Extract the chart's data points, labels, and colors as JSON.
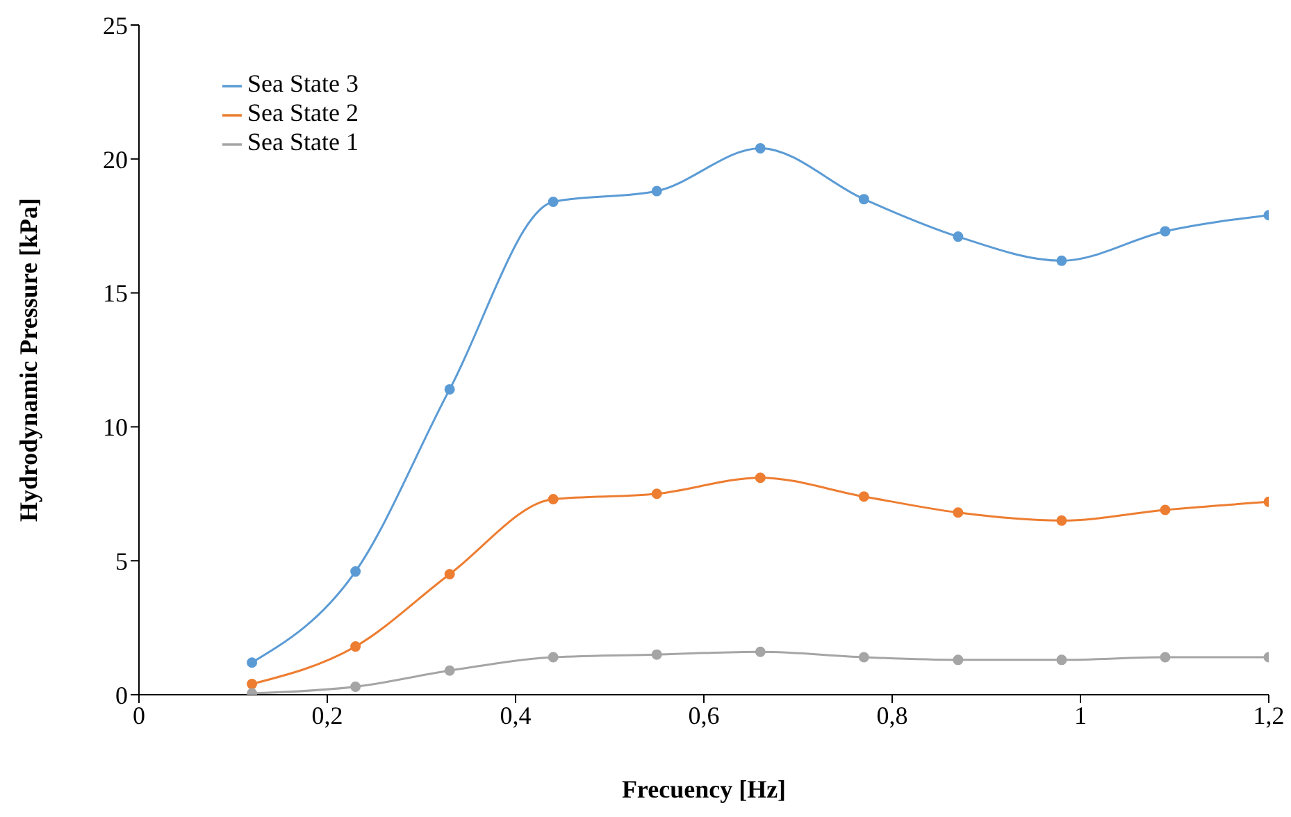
{
  "chart_data": {
    "type": "line",
    "xlabel": "Frecuency [Hz]",
    "ylabel": "Hydrodynamic Pressure [kPa]",
    "x": [
      0.12,
      0.23,
      0.33,
      0.44,
      0.55,
      0.66,
      0.77,
      0.87,
      0.98,
      1.09,
      1.2
    ],
    "series": [
      {
        "name": "Sea State 3",
        "color": "#5b9bd5",
        "values": [
          1.2,
          4.6,
          11.4,
          18.4,
          18.8,
          20.4,
          18.5,
          17.1,
          16.2,
          17.3,
          17.9
        ]
      },
      {
        "name": "Sea State 2",
        "color": "#ed7d31",
        "values": [
          0.4,
          1.8,
          4.5,
          7.3,
          7.5,
          8.1,
          7.4,
          6.8,
          6.5,
          6.9,
          7.2
        ]
      },
      {
        "name": "Sea State 1",
        "color": "#a5a5a5",
        "values": [
          0.05,
          0.3,
          0.9,
          1.4,
          1.5,
          1.6,
          1.4,
          1.3,
          1.3,
          1.4,
          1.4
        ]
      }
    ],
    "xlim": [
      0,
      1.2
    ],
    "xticks": [
      0,
      {
        "value": 0.2,
        "label": "0,2"
      },
      {
        "value": 0.4,
        "label": "0,4"
      },
      {
        "value": 0.6,
        "label": "0,6"
      },
      {
        "value": 0.8,
        "label": "0,8"
      },
      1,
      {
        "value": 1.2,
        "label": "1,2"
      }
    ],
    "ylim": [
      0,
      25
    ],
    "yticks": [
      0,
      5,
      10,
      15,
      20,
      25
    ],
    "grid": false,
    "legend": "top left",
    "marker": "circle",
    "line_style": "solid"
  }
}
